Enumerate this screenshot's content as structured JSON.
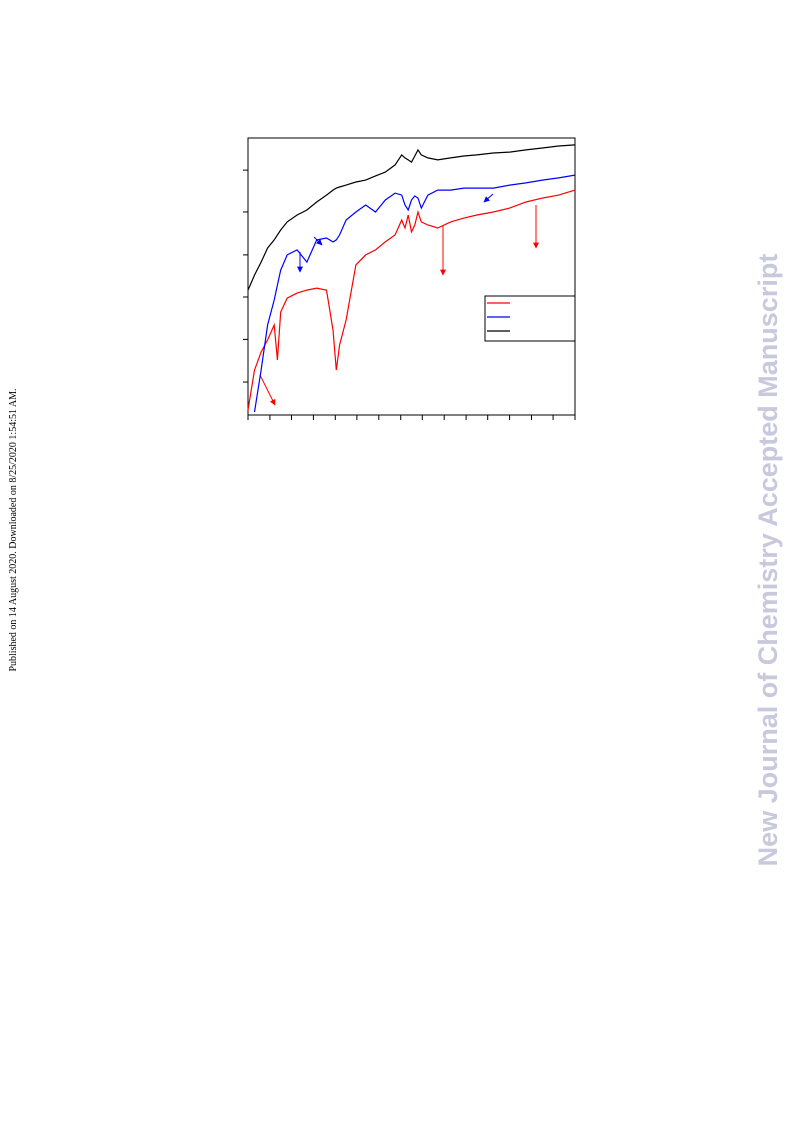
{
  "side_note": "Published on 14 August 2020. Downloaded on 8/25/2020 1:54:51 AM.",
  "watermark": "New Journal of Chemistry Accepted Manuscript",
  "chart_data": {
    "type": "line",
    "x": [
      0,
      2,
      4,
      6,
      8,
      9,
      10,
      12,
      15,
      18,
      21,
      24,
      26,
      27,
      28,
      30,
      33,
      36,
      39,
      42,
      45,
      47,
      48,
      49,
      50,
      51,
      52,
      53,
      55,
      58,
      62,
      66,
      70,
      75,
      80,
      85,
      90,
      95,
      100
    ],
    "series": [
      {
        "color": "#ff0000",
        "values": [
          1.8,
          16.2,
          22.7,
          27.1,
          32.5,
          19.9,
          37.2,
          42.2,
          44.0,
          45.1,
          45.8,
          45.1,
          30.7,
          16.2,
          25.3,
          34.3,
          54.2,
          57.8,
          59.6,
          62.5,
          65.0,
          70.4,
          67.5,
          72.2,
          66.1,
          68.6,
          73.3,
          69.7,
          68.6,
          67.5,
          69.7,
          71.1,
          72.2,
          73.3,
          74.7,
          76.9,
          78.3,
          79.4,
          81.2
        ]
      },
      {
        "color": "#0000ff",
        "values": [
          null,
          1.1,
          16.2,
          32.5,
          41.5,
          46.9,
          52.3,
          57.8,
          59.6,
          55.2,
          63.2,
          63.9,
          62.5,
          63.2,
          65.0,
          70.4,
          73.3,
          75.8,
          73.3,
          77.6,
          80.1,
          79.4,
          75.8,
          74.0,
          77.6,
          79.1,
          78.3,
          74.7,
          79.4,
          81.2,
          81.2,
          81.9,
          81.9,
          81.9,
          83.0,
          83.8,
          84.8,
          85.6,
          86.6
        ]
      },
      {
        "color": "#000000",
        "values": [
          45.1,
          50.5,
          55.2,
          60.3,
          63.2,
          65.0,
          66.8,
          69.7,
          72.2,
          74.0,
          76.9,
          79.4,
          81.2,
          81.9,
          82.3,
          83.0,
          84.1,
          84.8,
          86.3,
          87.7,
          90.3,
          93.9,
          92.8,
          92.1,
          91.3,
          93.5,
          95.7,
          93.9,
          92.8,
          92.1,
          92.8,
          93.5,
          93.9,
          94.6,
          94.9,
          95.7,
          96.4,
          97.1,
          97.5
        ]
      }
    ],
    "xlim": [
      0,
      100
    ],
    "ylim": [
      0,
      100
    ],
    "xticks": [
      0,
      6.7,
      13.3,
      20,
      26.7,
      33.3,
      40,
      46.7,
      53.3,
      60,
      66.7,
      73.3,
      80,
      86.7,
      93.3,
      100
    ],
    "yticks": [
      11.9,
      27.3,
      42.6,
      57.8,
      73.3,
      88.4
    ]
  }
}
